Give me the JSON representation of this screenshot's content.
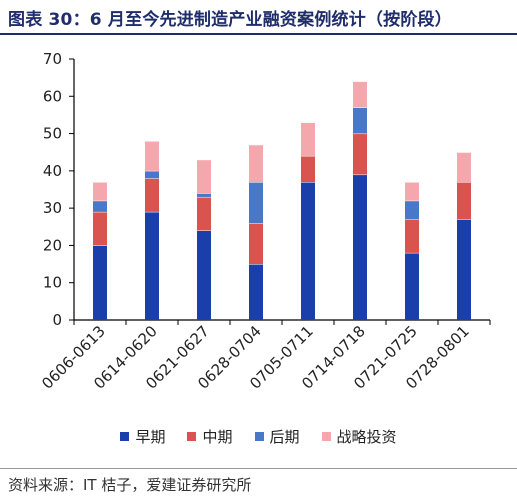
{
  "title": "图表 30：6 月至今先进制造产业融资案例统计（按阶段）",
  "source": "资料来源：IT 桔子，爱建证券研究所",
  "colors": {
    "title": "#1f2d6b",
    "axis": "#000000"
  },
  "chart_data": {
    "type": "bar",
    "stacked": true,
    "categories": [
      "0606-0613",
      "0614-0620",
      "0621-0627",
      "0628-0704",
      "0705-0711",
      "0714-0718",
      "0721-0725",
      "0728-0801"
    ],
    "series": [
      {
        "name": "早期",
        "color": "#1a3eaa",
        "values": [
          20,
          29,
          24,
          15,
          37,
          39,
          18,
          27
        ]
      },
      {
        "name": "中期",
        "color": "#d9534f",
        "values": [
          9,
          9,
          9,
          11,
          7,
          11,
          9,
          10
        ]
      },
      {
        "name": "后期",
        "color": "#4a78c9",
        "values": [
          3,
          2,
          1,
          11,
          0,
          7,
          5,
          0
        ]
      },
      {
        "name": "战略投资",
        "color": "#f4a7ac",
        "values": [
          5,
          8,
          9,
          10,
          9,
          7,
          5,
          8
        ]
      }
    ],
    "ylim": [
      0,
      70
    ],
    "yticks": [
      0,
      10,
      20,
      30,
      40,
      50,
      60,
      70
    ],
    "grid": false,
    "legend_position": "bottom"
  }
}
